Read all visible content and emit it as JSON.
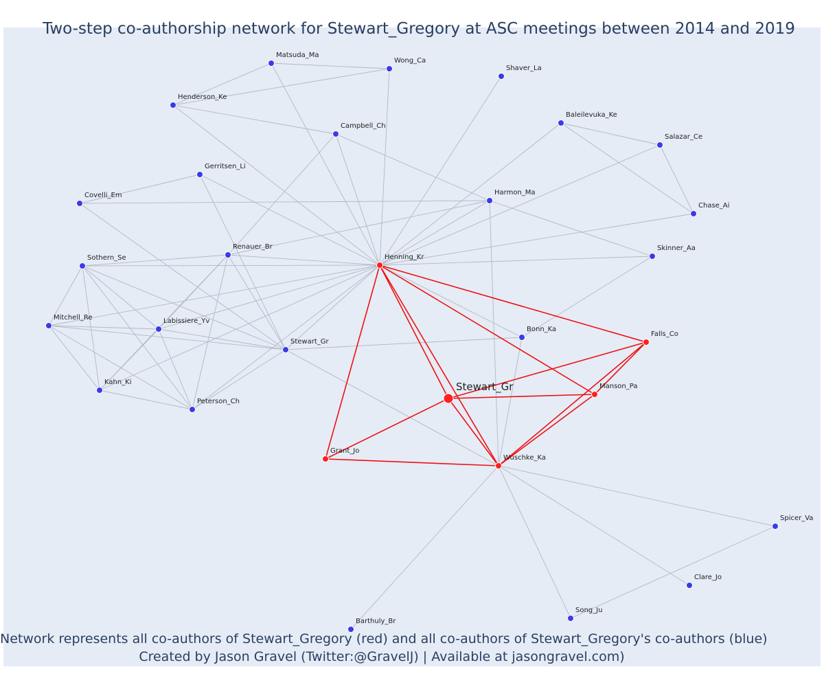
{
  "title": "Two-step co-authorship network for Stewart_Gregory at ASC meetings between 2014 and 2019",
  "footer": {
    "line1": "Network represents all co-authors of Stewart_Gregory (red) and all co-authors of Stewart_Gregory's co-authors (blue)",
    "line2": "Created by Jason Gravel (Twitter:@GravelJ) | Available at jasongravel.com)"
  },
  "colors": {
    "background": "#e5ecf6",
    "first_degree": "#ff2020",
    "second_degree": "#3b3be8",
    "edge_gray": "#b3b8c4",
    "edge_red": "#ee1111"
  },
  "nodes": [
    {
      "id": "ego",
      "label": "Stewart_Gr",
      "group": "ego"
    },
    {
      "id": "henning",
      "label": "Henning_Kr",
      "group": "red"
    },
    {
      "id": "falls",
      "label": "Falls_Co",
      "group": "red"
    },
    {
      "id": "manson",
      "label": "Manson_Pa",
      "group": "red"
    },
    {
      "id": "wuschke",
      "label": "Wuschke_Ka",
      "group": "red"
    },
    {
      "id": "grant",
      "label": "Grant_Jo",
      "group": "red"
    },
    {
      "id": "matsuda",
      "label": "Matsuda_Ma",
      "group": "blue"
    },
    {
      "id": "wong",
      "label": "Wong_Ca",
      "group": "blue"
    },
    {
      "id": "shaver",
      "label": "Shaver_La",
      "group": "blue"
    },
    {
      "id": "henderson",
      "label": "Henderson_Ke",
      "group": "blue"
    },
    {
      "id": "campbell",
      "label": "Campbell_Ch",
      "group": "blue"
    },
    {
      "id": "baleilevuka",
      "label": "Baleilevuka_Ke",
      "group": "blue"
    },
    {
      "id": "salazar",
      "label": "Salazar_Ce",
      "group": "blue"
    },
    {
      "id": "gerritsen",
      "label": "Gerritsen_Li",
      "group": "blue"
    },
    {
      "id": "covelli",
      "label": "Covelli_Em",
      "group": "blue"
    },
    {
      "id": "harmon",
      "label": "Harmon_Ma",
      "group": "blue"
    },
    {
      "id": "chase",
      "label": "Chase_Ai",
      "group": "blue"
    },
    {
      "id": "renauer",
      "label": "Renauer_Br",
      "group": "blue"
    },
    {
      "id": "sothern",
      "label": "Sothern_Se",
      "group": "blue"
    },
    {
      "id": "skinner",
      "label": "Skinner_Aa",
      "group": "blue"
    },
    {
      "id": "mitchell",
      "label": "Mitchell_Re",
      "group": "blue"
    },
    {
      "id": "labissiere",
      "label": "Labissiere_Yv",
      "group": "blue"
    },
    {
      "id": "stewart2",
      "label": "Stewart_Gr",
      "group": "blue"
    },
    {
      "id": "bonn",
      "label": "Bonn_Ka",
      "group": "blue"
    },
    {
      "id": "kahn",
      "label": "Kahn_Ki",
      "group": "blue"
    },
    {
      "id": "peterson",
      "label": "Peterson_Ch",
      "group": "blue"
    },
    {
      "id": "spicer",
      "label": "Spicer_Va",
      "group": "blue"
    },
    {
      "id": "clare",
      "label": "Clare_Jo",
      "group": "blue"
    },
    {
      "id": "song",
      "label": "Song_Ju",
      "group": "blue"
    },
    {
      "id": "barthuly",
      "label": "Barthuly_Br",
      "group": "blue"
    }
  ],
  "edges": [
    [
      "ego",
      "henning"
    ],
    [
      "ego",
      "falls"
    ],
    [
      "ego",
      "manson"
    ],
    [
      "ego",
      "wuschke"
    ],
    [
      "ego",
      "grant"
    ],
    [
      "henning",
      "falls"
    ],
    [
      "henning",
      "manson"
    ],
    [
      "henning",
      "wuschke"
    ],
    [
      "henning",
      "grant"
    ],
    [
      "falls",
      "manson"
    ],
    [
      "falls",
      "wuschke"
    ],
    [
      "manson",
      "wuschke"
    ],
    [
      "grant",
      "wuschke"
    ],
    [
      "matsuda",
      "wong"
    ],
    [
      "matsuda",
      "henderson"
    ],
    [
      "matsuda",
      "henning"
    ],
    [
      "henderson",
      "wong"
    ],
    [
      "henderson",
      "campbell"
    ],
    [
      "henderson",
      "henning"
    ],
    [
      "wong",
      "henning"
    ],
    [
      "shaver",
      "henning"
    ],
    [
      "campbell",
      "henning"
    ],
    [
      "campbell",
      "harmon"
    ],
    [
      "campbell",
      "renauer"
    ],
    [
      "baleilevuka",
      "salazar"
    ],
    [
      "baleilevuka",
      "chase"
    ],
    [
      "baleilevuka",
      "henning"
    ],
    [
      "salazar",
      "chase"
    ],
    [
      "salazar",
      "henning"
    ],
    [
      "chase",
      "henning"
    ],
    [
      "gerritsen",
      "covelli"
    ],
    [
      "gerritsen",
      "henning"
    ],
    [
      "gerritsen",
      "stewart2"
    ],
    [
      "covelli",
      "harmon"
    ],
    [
      "covelli",
      "stewart2"
    ],
    [
      "harmon",
      "henning"
    ],
    [
      "harmon",
      "renauer"
    ],
    [
      "harmon",
      "skinner"
    ],
    [
      "harmon",
      "wuschke"
    ],
    [
      "skinner",
      "henning"
    ],
    [
      "skinner",
      "bonn"
    ],
    [
      "renauer",
      "henning"
    ],
    [
      "renauer",
      "sothern"
    ],
    [
      "renauer",
      "labissiere"
    ],
    [
      "renauer",
      "kahn"
    ],
    [
      "renauer",
      "peterson"
    ],
    [
      "renauer",
      "stewart2"
    ],
    [
      "sothern",
      "henning"
    ],
    [
      "sothern",
      "mitchell"
    ],
    [
      "sothern",
      "labissiere"
    ],
    [
      "sothern",
      "kahn"
    ],
    [
      "sothern",
      "peterson"
    ],
    [
      "sothern",
      "stewart2"
    ],
    [
      "mitchell",
      "henning"
    ],
    [
      "mitchell",
      "labissiere"
    ],
    [
      "mitchell",
      "kahn"
    ],
    [
      "mitchell",
      "peterson"
    ],
    [
      "mitchell",
      "stewart2"
    ],
    [
      "labissiere",
      "henning"
    ],
    [
      "labissiere",
      "kahn"
    ],
    [
      "labissiere",
      "peterson"
    ],
    [
      "labissiere",
      "stewart2"
    ],
    [
      "kahn",
      "henning"
    ],
    [
      "kahn",
      "peterson"
    ],
    [
      "peterson",
      "henning"
    ],
    [
      "peterson",
      "stewart2"
    ],
    [
      "stewart2",
      "henning"
    ],
    [
      "stewart2",
      "bonn"
    ],
    [
      "stewart2",
      "wuschke"
    ],
    [
      "bonn",
      "henning"
    ],
    [
      "bonn",
      "wuschke"
    ],
    [
      "wuschke",
      "spicer"
    ],
    [
      "wuschke",
      "clare"
    ],
    [
      "wuschke",
      "song"
    ],
    [
      "wuschke",
      "barthuly"
    ],
    [
      "spicer",
      "song"
    ]
  ]
}
